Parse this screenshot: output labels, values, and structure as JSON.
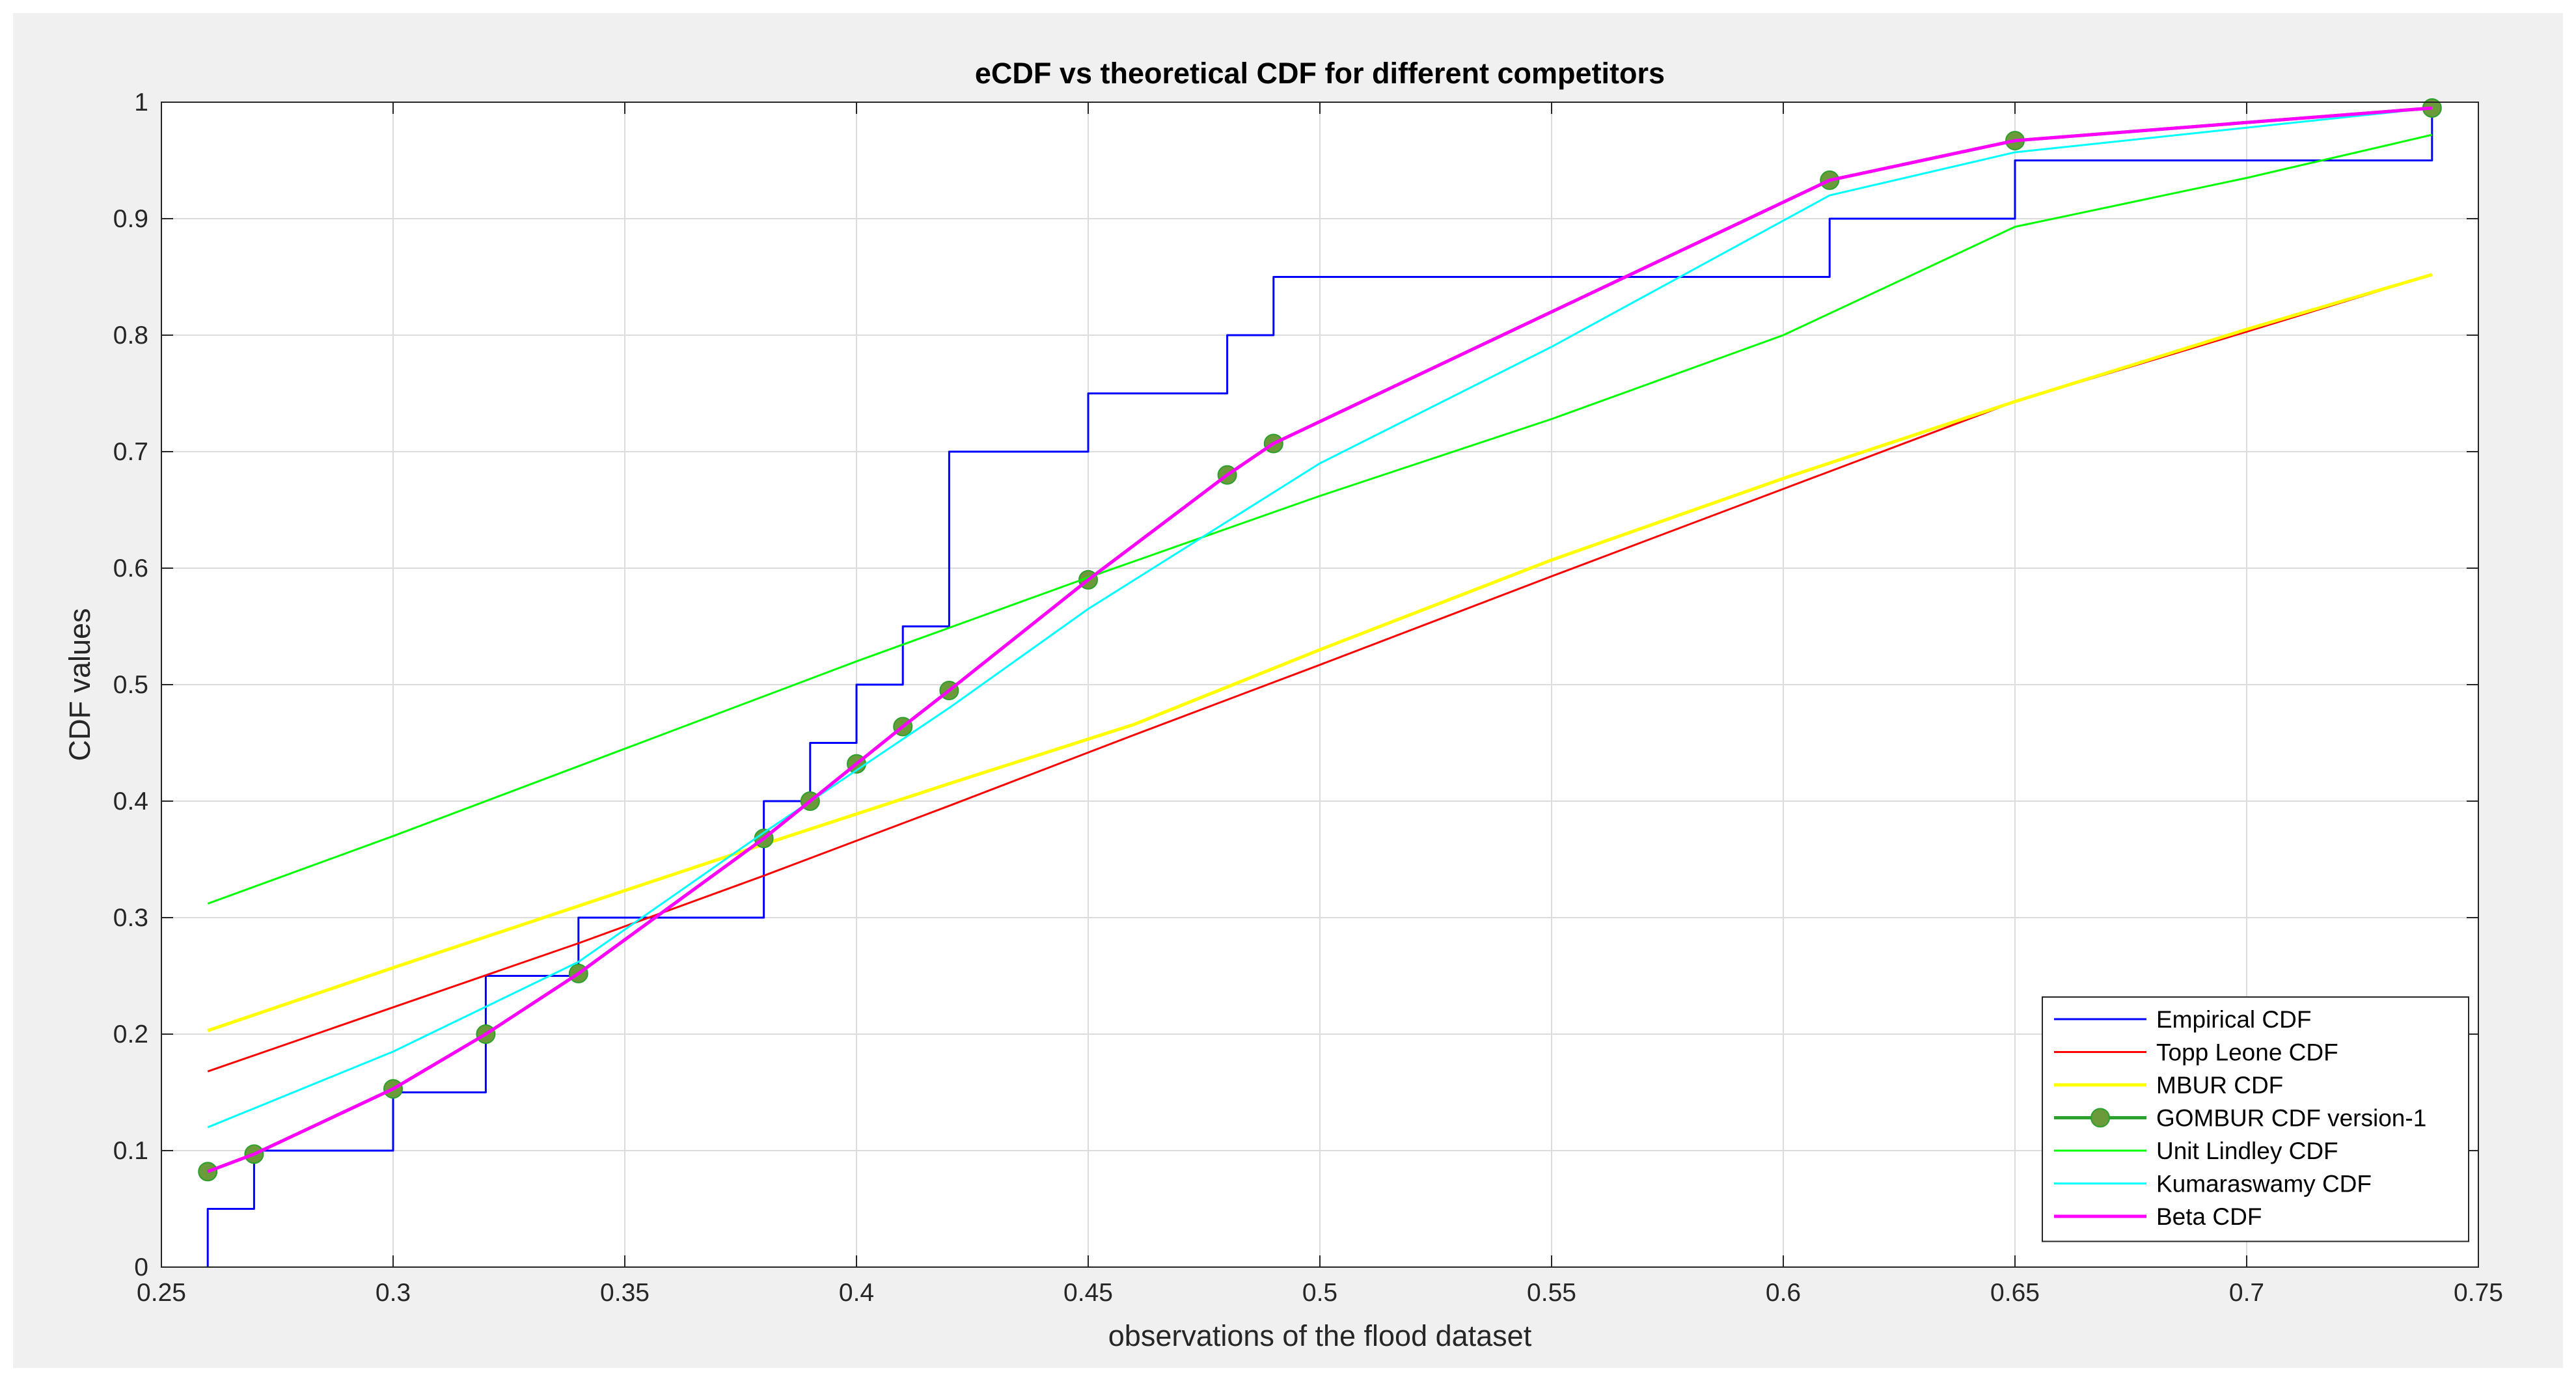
{
  "chart_data": {
    "type": "line",
    "title": "eCDF vs theoretical CDF for different competitors",
    "xlabel": "observations of the flood dataset",
    "ylabel": "CDF values",
    "xlim": [
      0.25,
      0.75
    ],
    "ylim": [
      0,
      1
    ],
    "xticks": [
      0.25,
      0.3,
      0.35,
      0.4,
      0.45,
      0.5,
      0.55,
      0.6,
      0.65,
      0.7,
      0.75
    ],
    "xtick_labels": [
      "0.25",
      "0.3",
      "0.35",
      "0.4",
      "0.45",
      "0.5",
      "0.55",
      "0.6",
      "0.65",
      "0.7",
      "0.75"
    ],
    "yticks": [
      0,
      0.1,
      0.2,
      0.3,
      0.4,
      0.5,
      0.6,
      0.7,
      0.8,
      0.9,
      1
    ],
    "ytick_labels": [
      "0",
      "0.1",
      "0.2",
      "0.3",
      "0.4",
      "0.5",
      "0.6",
      "0.7",
      "0.8",
      "0.9",
      "1"
    ],
    "grid": true,
    "legend_position": "bottom-right",
    "series": [
      {
        "name": "Empirical CDF",
        "color": "#0000ff",
        "style": "step",
        "width": 3,
        "x": [
          0.26,
          0.27,
          0.3,
          0.32,
          0.34,
          0.38,
          0.39,
          0.4,
          0.41,
          0.42,
          0.45,
          0.48,
          0.49,
          0.61,
          0.65,
          0.74
        ],
        "y": [
          0.05,
          0.1,
          0.15,
          0.25,
          0.3,
          0.4,
          0.45,
          0.5,
          0.55,
          0.7,
          0.75,
          0.8,
          0.85,
          0.9,
          0.95,
          1.0
        ]
      },
      {
        "name": "Topp Leone CDF",
        "color": "#ff0000",
        "style": "line",
        "width": 3,
        "x": [
          0.26,
          0.3,
          0.34,
          0.38,
          0.42,
          0.46,
          0.5,
          0.55,
          0.6,
          0.65,
          0.7,
          0.74
        ],
        "y": [
          0.168,
          0.223,
          0.278,
          0.336,
          0.396,
          0.457,
          0.517,
          0.593,
          0.668,
          0.743,
          0.803,
          0.852
        ]
      },
      {
        "name": "MBUR CDF",
        "color": "#ffff00",
        "style": "line",
        "width": 5,
        "x": [
          0.26,
          0.3,
          0.34,
          0.38,
          0.42,
          0.46,
          0.5,
          0.55,
          0.6,
          0.65,
          0.7,
          0.74
        ],
        "y": [
          0.203,
          0.257,
          0.31,
          0.363,
          0.415,
          0.466,
          0.53,
          0.607,
          0.677,
          0.743,
          0.805,
          0.852
        ]
      },
      {
        "name": "GOMBUR CDF version-1",
        "color": "#2ca02c",
        "marker_color": "#6a9a3a",
        "style": "markers",
        "width": 5,
        "x": [
          0.26,
          0.27,
          0.3,
          0.32,
          0.34,
          0.38,
          0.39,
          0.4,
          0.41,
          0.42,
          0.45,
          0.48,
          0.49,
          0.61,
          0.65,
          0.74
        ],
        "y": [
          0.082,
          0.097,
          0.153,
          0.2,
          0.252,
          0.368,
          0.4,
          0.432,
          0.464,
          0.495,
          0.59,
          0.68,
          0.707,
          0.933,
          0.967,
          0.995
        ]
      },
      {
        "name": "Unit Lindley CDF",
        "color": "#00ff00",
        "style": "line",
        "width": 3,
        "x": [
          0.26,
          0.3,
          0.35,
          0.4,
          0.45,
          0.5,
          0.55,
          0.6,
          0.65,
          0.7,
          0.74
        ],
        "y": [
          0.312,
          0.37,
          0.445,
          0.52,
          0.592,
          0.662,
          0.728,
          0.8,
          0.893,
          0.935,
          0.972
        ]
      },
      {
        "name": "Kumaraswamy CDF",
        "color": "#00ffff",
        "style": "line",
        "width": 3,
        "x": [
          0.26,
          0.3,
          0.34,
          0.38,
          0.42,
          0.45,
          0.48,
          0.5,
          0.55,
          0.61,
          0.65,
          0.74
        ],
        "y": [
          0.12,
          0.185,
          0.262,
          0.373,
          0.48,
          0.565,
          0.64,
          0.69,
          0.79,
          0.92,
          0.957,
          0.995
        ]
      },
      {
        "name": "Beta CDF",
        "color": "#ff00ff",
        "style": "line",
        "width": 5,
        "x": [
          0.26,
          0.27,
          0.3,
          0.32,
          0.34,
          0.38,
          0.39,
          0.4,
          0.41,
          0.42,
          0.45,
          0.48,
          0.49,
          0.61,
          0.65,
          0.74
        ],
        "y": [
          0.082,
          0.097,
          0.153,
          0.2,
          0.252,
          0.368,
          0.4,
          0.432,
          0.464,
          0.495,
          0.59,
          0.68,
          0.707,
          0.933,
          0.967,
          0.995
        ]
      }
    ]
  }
}
